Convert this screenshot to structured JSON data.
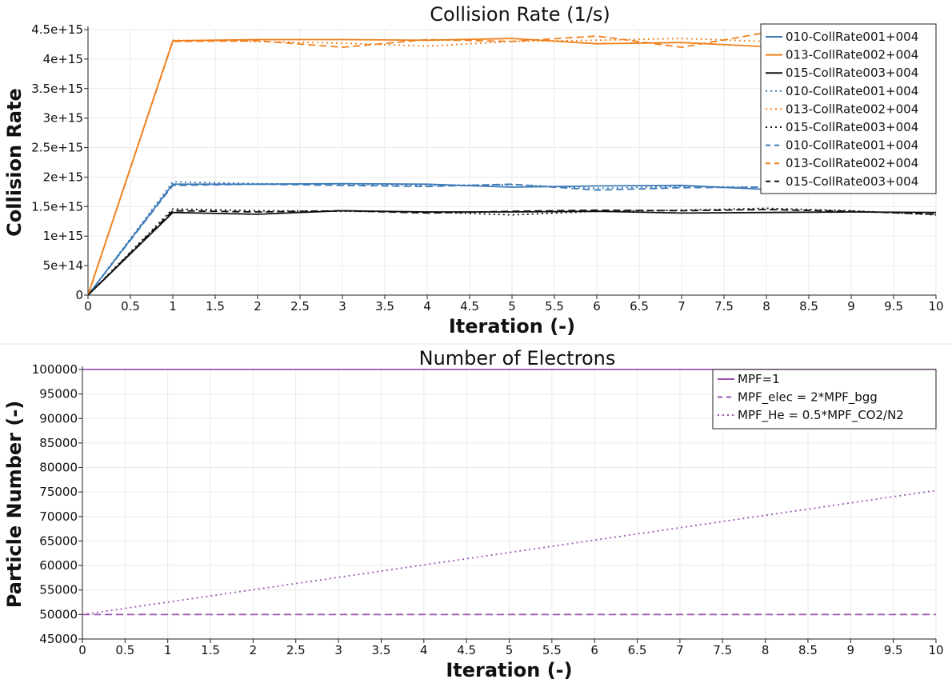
{
  "chart_data": [
    {
      "type": "line",
      "title": "Collision Rate (1/s)",
      "xlabel": "Iteration (-)",
      "ylabel": "Collision Rate",
      "xlim": [
        0,
        10
      ],
      "ylim": [
        0,
        4500000000000000.0
      ],
      "x_ticks": [
        "0",
        "0.5",
        "1",
        "1.5",
        "2",
        "2.5",
        "3",
        "3.5",
        "4",
        "4.5",
        "5",
        "5.5",
        "6",
        "6.5",
        "7",
        "7.5",
        "8",
        "8.5",
        "9",
        "9.5",
        "10"
      ],
      "y_ticks": [
        {
          "value": 0,
          "label": "0"
        },
        {
          "value": 500000000000000.0,
          "label": "5e+14"
        },
        {
          "value": 1000000000000000.0,
          "label": "1e+15"
        },
        {
          "value": 1500000000000000.0,
          "label": "1.5e+15"
        },
        {
          "value": 2000000000000000.0,
          "label": "2e+15"
        },
        {
          "value": 2500000000000000.0,
          "label": "2.5e+15"
        },
        {
          "value": 3000000000000000.0,
          "label": "3e+15"
        },
        {
          "value": 3500000000000000.0,
          "label": "3.5e+15"
        },
        {
          "value": 4000000000000000.0,
          "label": "4e+15"
        },
        {
          "value": 4500000000000000.0,
          "label": "4.5e+15"
        }
      ],
      "grid": true,
      "legend_position": "top-right",
      "x": [
        0,
        1,
        2,
        3,
        4,
        5,
        6,
        7,
        8,
        9,
        10
      ],
      "series": [
        {
          "name": "010-CollRate001+004",
          "color": "#3d7ab8",
          "dash": "solid",
          "values": [
            0,
            1880000000000000.0,
            1880000000000000.0,
            1890000000000000.0,
            1880000000000000.0,
            1830000000000000.0,
            1850000000000000.0,
            1860000000000000.0,
            1790000000000000.0,
            1800000000000000.0,
            1800000000000000.0
          ]
        },
        {
          "name": "013-CollRate002+004",
          "color": "#f07f1a",
          "dash": "solid",
          "values": [
            0,
            4310000000000000.0,
            4330000000000000.0,
            4330000000000000.0,
            4320000000000000.0,
            4350000000000000.0,
            4260000000000000.0,
            4280000000000000.0,
            4210000000000000.0,
            4220000000000000.0,
            4220000000000000.0
          ]
        },
        {
          "name": "015-CollRate003+004",
          "color": "#111111",
          "dash": "solid",
          "values": [
            0,
            1400000000000000.0,
            1370000000000000.0,
            1430000000000000.0,
            1410000000000000.0,
            1410000000000000.0,
            1420000000000000.0,
            1390000000000000.0,
            1400000000000000.0,
            1410000000000000.0,
            1400000000000000.0
          ]
        },
        {
          "name": "010-CollRate001+004",
          "color": "#3d7ab8",
          "dash": "dot",
          "values": [
            0,
            1920000000000000.0,
            1890000000000000.0,
            1880000000000000.0,
            1860000000000000.0,
            1870000000000000.0,
            1810000000000000.0,
            1840000000000000.0,
            1830000000000000.0,
            1820000000000000.0,
            1820000000000000.0
          ]
        },
        {
          "name": "013-CollRate002+004",
          "color": "#f07f1a",
          "dash": "dot",
          "values": [
            0,
            4320000000000000.0,
            4300000000000000.0,
            4270000000000000.0,
            4220000000000000.0,
            4300000000000000.0,
            4320000000000000.0,
            4350000000000000.0,
            4300000000000000.0,
            4320000000000000.0,
            4320000000000000.0
          ]
        },
        {
          "name": "015-CollRate003+004",
          "color": "#111111",
          "dash": "dot",
          "values": [
            0,
            1460000000000000.0,
            1430000000000000.0,
            1420000000000000.0,
            1410000000000000.0,
            1360000000000000.0,
            1420000000000000.0,
            1440000000000000.0,
            1470000000000000.0,
            1430000000000000.0,
            1360000000000000.0
          ]
        },
        {
          "name": "010-CollRate001+004",
          "color": "#3d7ab8",
          "dash": "dash",
          "values": [
            0,
            1860000000000000.0,
            1880000000000000.0,
            1860000000000000.0,
            1840000000000000.0,
            1880000000000000.0,
            1780000000000000.0,
            1820000000000000.0,
            1830000000000000.0,
            1830000000000000.0,
            1830000000000000.0
          ]
        },
        {
          "name": "013-CollRate002+004",
          "color": "#f07f1a",
          "dash": "dash",
          "values": [
            0,
            4300000000000000.0,
            4310000000000000.0,
            4200000000000000.0,
            4330000000000000.0,
            4300000000000000.0,
            4390000000000000.0,
            4200000000000000.0,
            4450000000000000.0,
            4400000000000000.0,
            4400000000000000.0
          ]
        },
        {
          "name": "015-CollRate003+004",
          "color": "#111111",
          "dash": "dash",
          "values": [
            0,
            1430000000000000.0,
            1410000000000000.0,
            1430000000000000.0,
            1390000000000000.0,
            1420000000000000.0,
            1440000000000000.0,
            1430000000000000.0,
            1450000000000000.0,
            1420000000000000.0,
            1370000000000000.0
          ]
        }
      ]
    },
    {
      "type": "line",
      "title": "Number of Electrons",
      "xlabel": "Iteration (-)",
      "ylabel": "Particle Number (-)",
      "xlim": [
        0,
        10
      ],
      "ylim": [
        45000,
        100000
      ],
      "x_ticks": [
        "0",
        "0.5",
        "1",
        "1.5",
        "2",
        "2.5",
        "3",
        "3.5",
        "4",
        "4.5",
        "5",
        "5.5",
        "6",
        "6.5",
        "7",
        "7.5",
        "8",
        "8.5",
        "9",
        "9.5",
        "10"
      ],
      "y_ticks": [
        {
          "value": 45000,
          "label": "45000"
        },
        {
          "value": 50000,
          "label": "50000"
        },
        {
          "value": 55000,
          "label": "55000"
        },
        {
          "value": 60000,
          "label": "60000"
        },
        {
          "value": 65000,
          "label": "65000"
        },
        {
          "value": 70000,
          "label": "70000"
        },
        {
          "value": 75000,
          "label": "75000"
        },
        {
          "value": 80000,
          "label": "80000"
        },
        {
          "value": 85000,
          "label": "85000"
        },
        {
          "value": 90000,
          "label": "90000"
        },
        {
          "value": 95000,
          "label": "95000"
        },
        {
          "value": 100000,
          "label": "100000"
        }
      ],
      "grid": true,
      "legend_position": "top-right",
      "x": [
        0,
        10
      ],
      "series": [
        {
          "name": "MPF=1",
          "color": "#9b55b5",
          "dash": "solid",
          "values": [
            100000,
            100000
          ]
        },
        {
          "name": "MPF_elec = 2*MPF_bgg",
          "color": "#9b55b5",
          "dash": "dash",
          "values": [
            50000,
            50000
          ]
        },
        {
          "name": "MPF_He = 0.5*MPF_CO2/N2",
          "color": "#9b55b5",
          "dash": "dot",
          "values": [
            50000,
            75300
          ]
        }
      ]
    }
  ]
}
